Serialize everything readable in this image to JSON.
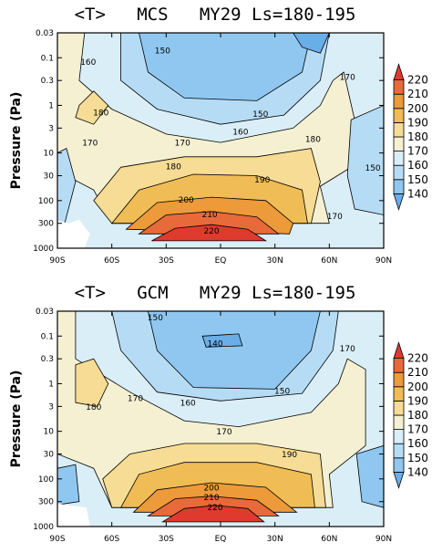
{
  "chart_data": [
    {
      "type": "contour",
      "title": "<T>   MCS   MY29 Ls=180-195",
      "ylabel": "Pressure (Pa)",
      "x_ticks": [
        "90S",
        "60S",
        "30S",
        "EQ",
        "30N",
        "60N",
        "90N"
      ],
      "y_ticks": [
        "0.03",
        "0.1",
        "0.3",
        "1",
        "3",
        "10",
        "30",
        "100",
        "300",
        "1000"
      ],
      "ylim": [
        1000,
        0.03
      ],
      "xlim": [
        -90,
        90
      ],
      "y_scale": "log",
      "colorbar_levels": [
        140,
        150,
        160,
        170,
        180,
        190,
        200,
        210,
        220
      ],
      "contour_labels": [
        {
          "value": "150",
          "lat": -32,
          "p": 0.07
        },
        {
          "value": "160",
          "lat": -73,
          "p": 0.12
        },
        {
          "value": "170",
          "lat": 70,
          "p": 0.25
        },
        {
          "value": "180",
          "lat": -66,
          "p": 1.4
        },
        {
          "value": "150",
          "lat": 22,
          "p": 1.5
        },
        {
          "value": "160",
          "lat": 11,
          "p": 3.5
        },
        {
          "value": "170",
          "lat": -72,
          "p": 6.0
        },
        {
          "value": "170",
          "lat": -21,
          "p": 6.0
        },
        {
          "value": "180",
          "lat": 51,
          "p": 5.0
        },
        {
          "value": "180",
          "lat": -26,
          "p": 19
        },
        {
          "value": "190",
          "lat": 23,
          "p": 36
        },
        {
          "value": "150",
          "lat": 84,
          "p": 20
        },
        {
          "value": "200",
          "lat": -19,
          "p": 95
        },
        {
          "value": "210",
          "lat": -6,
          "p": 190
        },
        {
          "value": "220",
          "lat": -5,
          "p": 420
        },
        {
          "value": "170",
          "lat": 63,
          "p": 210
        }
      ]
    },
    {
      "type": "contour",
      "title": "<T>   GCM   MY29 Ls=180-195",
      "ylabel": "Pressure (Pa)",
      "x_ticks": [
        "90S",
        "60S",
        "30S",
        "EQ",
        "30N",
        "60N",
        "90N"
      ],
      "y_ticks": [
        "0.03",
        "0.1",
        "0.3",
        "1",
        "3",
        "10",
        "30",
        "100",
        "300",
        "1000"
      ],
      "ylim": [
        1000,
        0.03
      ],
      "xlim": [
        -90,
        90
      ],
      "y_scale": "log",
      "colorbar_levels": [
        140,
        150,
        160,
        170,
        180,
        190,
        200,
        210,
        220
      ],
      "contour_labels": [
        {
          "value": "150",
          "lat": -36,
          "p": 0.04
        },
        {
          "value": "140",
          "lat": -3,
          "p": 0.14
        },
        {
          "value": "170",
          "lat": 70,
          "p": 0.18
        },
        {
          "value": "150",
          "lat": 34,
          "p": 1.4
        },
        {
          "value": "160",
          "lat": -18,
          "p": 2.5
        },
        {
          "value": "180",
          "lat": -70,
          "p": 3.0
        },
        {
          "value": "170",
          "lat": -47,
          "p": 2.0
        },
        {
          "value": "170",
          "lat": 2,
          "p": 10
        },
        {
          "value": "190",
          "lat": 38,
          "p": 30
        },
        {
          "value": "200",
          "lat": -5,
          "p": 150
        },
        {
          "value": "210",
          "lat": -5,
          "p": 240
        },
        {
          "value": "220",
          "lat": -3,
          "p": 390
        }
      ]
    }
  ]
}
